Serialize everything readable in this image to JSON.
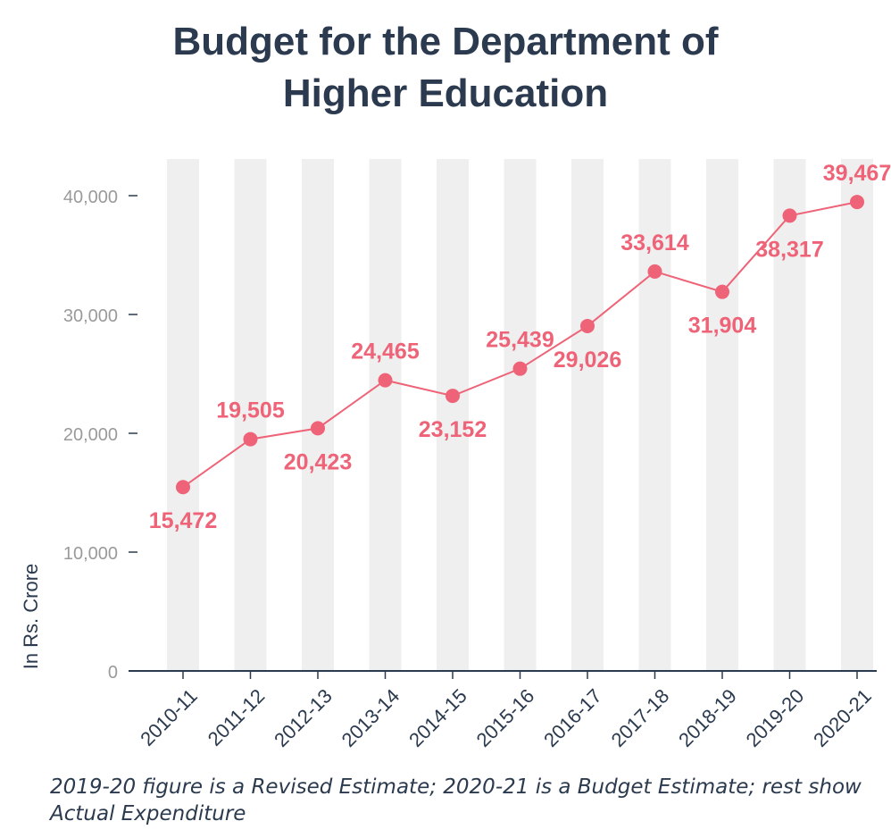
{
  "chart_data": {
    "type": "line",
    "title_lines": [
      "Budget for the Department of",
      "Higher Education"
    ],
    "ylabel": "In Rs. Crore",
    "xlabel": "",
    "categories": [
      "2010-11",
      "2011-12",
      "2012-13",
      "2013-14",
      "2014-15",
      "2015-16",
      "2016-17",
      "2017-18",
      "2018-19",
      "2019-20",
      "2020-21"
    ],
    "series": [
      {
        "values": [
          15472,
          19505,
          20423,
          24465,
          23152,
          25439,
          29026,
          33614,
          31904,
          38317,
          39467
        ]
      }
    ],
    "data_labels": [
      "15,472",
      "19,505",
      "20,423",
      "24,465",
      "23,152",
      "25,439",
      "29,026",
      "33,614",
      "31,904",
      "38,317",
      "39,467"
    ],
    "label_positions": [
      "below",
      "above",
      "below",
      "above",
      "below",
      "above",
      "below",
      "above",
      "below",
      "below",
      "above"
    ],
    "yticks": [
      0,
      10000,
      20000,
      30000,
      40000
    ],
    "ytick_labels": [
      "0",
      "10,000",
      "20,000",
      "30,000",
      "40,000"
    ],
    "ylim": [
      0,
      43000
    ],
    "colors": {
      "line": "#ee6377",
      "band": "#efefef",
      "axis": "#2b3a4e",
      "tick_text": "#9a9a9a",
      "text": "#2b3a4e"
    }
  },
  "footnote": "2019-20 figure is a Revised Estimate; 2020-21 is a Budget Estimate; rest show Actual Expenditure"
}
